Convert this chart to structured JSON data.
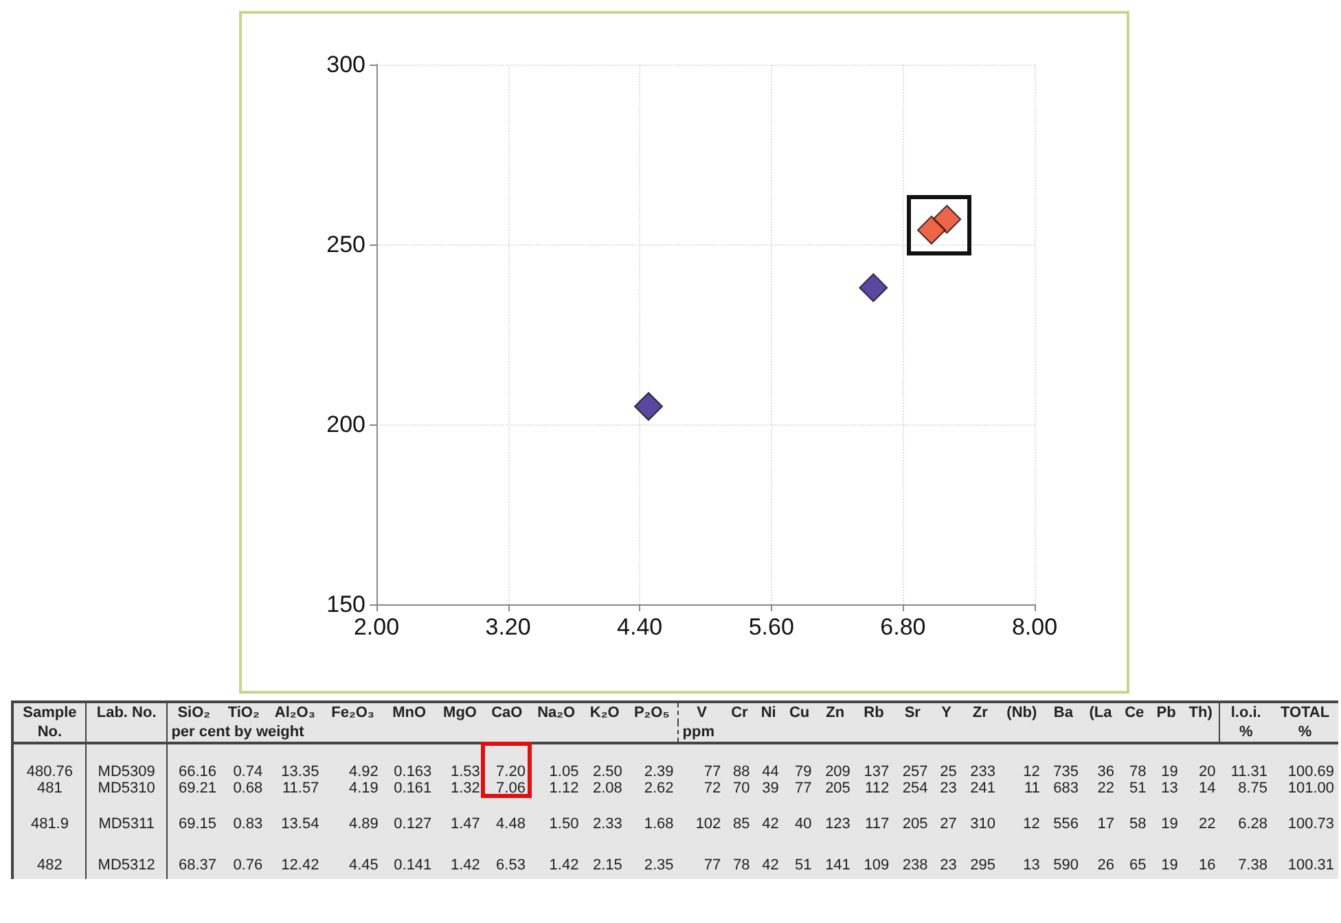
{
  "chart_data": {
    "type": "scatter",
    "marker": "diamond",
    "grid": true,
    "x": [
      7.2,
      7.06,
      4.48,
      6.53
    ],
    "values": [
      257,
      254,
      205,
      238
    ],
    "colors": [
      "#e8401c",
      "#e8401c",
      "#2e1a8a",
      "#2e1a8a"
    ],
    "xlim": [
      2,
      8
    ],
    "xticks": [
      {
        "value": 2,
        "label": "2.00"
      },
      {
        "value": 3.2,
        "label": "3.20"
      },
      {
        "value": 4.4,
        "label": "4.40"
      },
      {
        "value": 5.6,
        "label": "5.60"
      },
      {
        "value": 6.8,
        "label": "6.80"
      },
      {
        "value": 8,
        "label": "8.00"
      }
    ],
    "ylim": [
      150,
      300
    ],
    "yticks": [
      150,
      200,
      250,
      300
    ],
    "annotations": [
      "Sample\tLab. No.\tSiO₂\tTiO₂\tAl₂O₃\tFe₂O₃\tMnO\tMgO\tCaO\tNa₂O\tK₂O\tP₂O₅\tV\tCr\tNi\tCu\tZn\tRb\tSr\tY\tZr\t(Nb)\tBa\t(La\tCe\tPb\tTh)\tl.o.i.\tTOTAL",
      "No.\t\tper cent by weight\t\t\t\t\t\t\t\t\t\tppm\t\t\t\t\t\t\t\t\t\t\t\t\t\t\t%\t%",
      "480.76\tMD5309\t66.16\t0.74\t13.35\t4.92\t0.163\t1.53\t7.20\t1.05\t2.50\t2.39\t77\t88\t44\t79\t209\t137\t257\t25\t233\t12\t735\t36\t78\t19\t20\t11.31\t100.69",
      "481\tMD5310\t69.21\t0.68\t11.57\t4.19\t0.161\t1.32\t7.06\t1.12\t2.08\t2.62\t72\t70\t39\t77\t205\t112\t254\t23\t241\t11\t683\t22\t51\t13\t14\t8.75\t101.00",
      "481.9\tMD5311\t69.15\t0.83\t13.54\t4.89\t0.127\t1.47\t4.48\t1.50\t2.33\t1.68\t102\t85\t42\t40\t123\t117\t205\t27\t310\t12\t556\t17\t58\t19\t22\t6.28\t100.73",
      "482\tMD5312\t68.37\t0.76\t12.42\t4.45\t0.141\t1.42\t6.53\t1.42\t2.15\t2.35\t77\t78\t42\t51\t141\t109\t238\t23\t295\t13\t590\t26\t65\t19\t16\t7.38\t100.31"
    ]
  }
}
